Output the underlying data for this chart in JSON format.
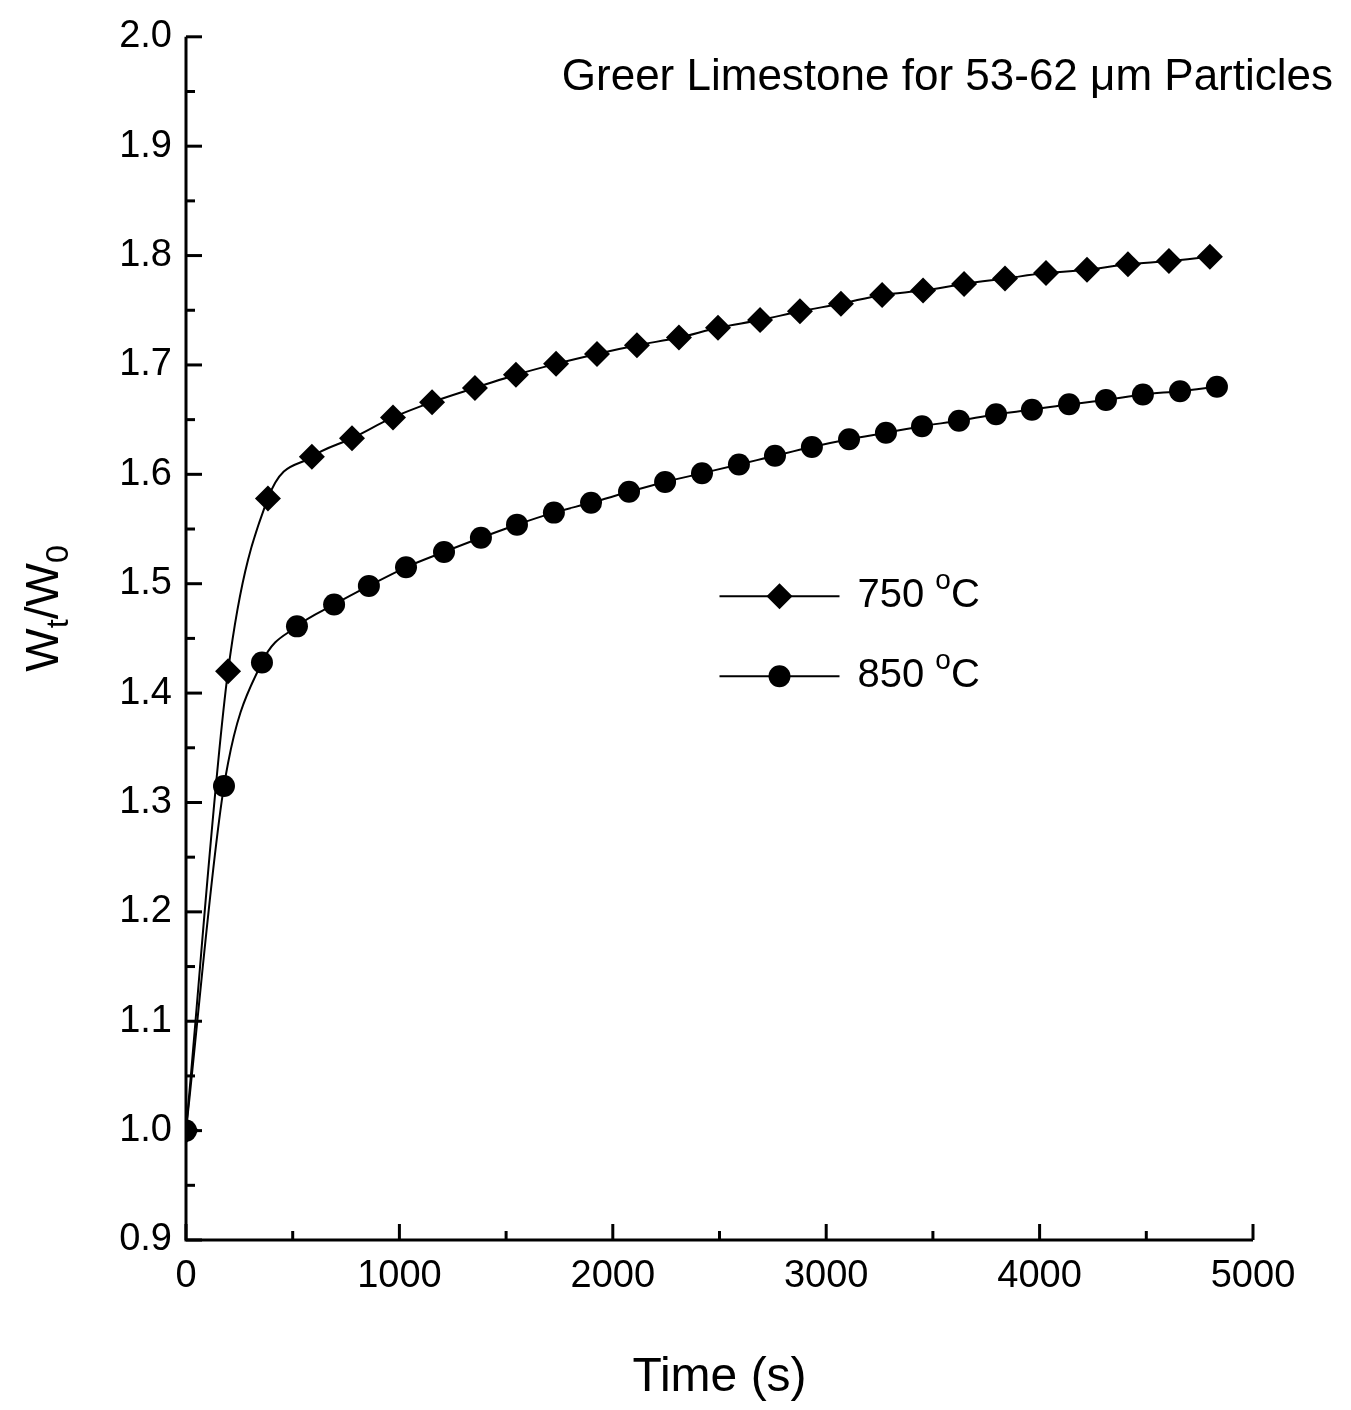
{
  "chart_data": {
    "type": "line",
    "title": "Greer Limestone for 53-62 μm Particles",
    "xlabel": "Time (s)",
    "ylabel": "W$_{t}$/W$_{0}$",
    "xlim": [
      0,
      5000
    ],
    "xticks": [
      0,
      {
        "value": 500,
        "label": null
      },
      1000,
      {
        "value": 1500,
        "label": null
      },
      2000,
      {
        "value": 2500,
        "label": null
      },
      3000,
      {
        "value": 3500,
        "label": null
      },
      4000,
      {
        "value": 4500,
        "label": null
      },
      5000
    ],
    "ylim": [
      0.9,
      2.0
    ],
    "yticks": [
      {
        "value": 0.9,
        "label": "0.9"
      },
      {
        "value": 0.95,
        "label": null
      },
      {
        "value": 1.0,
        "label": "1.0"
      },
      {
        "value": 1.05,
        "label": null
      },
      {
        "value": 1.1,
        "label": "1.1"
      },
      {
        "value": 1.15,
        "label": null
      },
      {
        "value": 1.2,
        "label": "1.2"
      },
      {
        "value": 1.25,
        "label": null
      },
      {
        "value": 1.3,
        "label": "1.3"
      },
      {
        "value": 1.35,
        "label": null
      },
      {
        "value": 1.4,
        "label": "1.4"
      },
      {
        "value": 1.45,
        "label": null
      },
      {
        "value": 1.5,
        "label": "1.5"
      },
      {
        "value": 1.55,
        "label": null
      },
      {
        "value": 1.6,
        "label": "1.6"
      },
      {
        "value": 1.65,
        "label": null
      },
      {
        "value": 1.7,
        "label": "1.7"
      },
      {
        "value": 1.75,
        "label": null
      },
      {
        "value": 1.8,
        "label": "1.8"
      },
      {
        "value": 1.85,
        "label": null
      },
      {
        "value": 1.9,
        "label": "1.9"
      },
      {
        "value": 1.95,
        "label": null
      },
      {
        "value": 2.0,
        "label": "2.0"
      }
    ],
    "legend": "center",
    "line_style": "solid",
    "series": [
      {
        "name": "750 $^{o}$C",
        "color": "#000000",
        "marker": "diamond",
        "x": [
          0,
          197,
          384,
          590,
          778,
          970,
          1153,
          1354,
          1546,
          1734,
          1926,
          2113,
          2310,
          2493,
          2690,
          2877,
          3069,
          3262,
          3454,
          3646,
          3838,
          4030,
          4222,
          4414,
          4606,
          4798
        ],
        "values": [
          1.0,
          1.42,
          1.578,
          1.616,
          1.633,
          1.652,
          1.666,
          1.679,
          1.691,
          1.701,
          1.71,
          1.718,
          1.725,
          1.734,
          1.741,
          1.749,
          1.756,
          1.764,
          1.768,
          1.774,
          1.779,
          1.784,
          1.787,
          1.792,
          1.795,
          1.799
        ]
      },
      {
        "name": "850 $^{o}$C",
        "color": "#000000",
        "marker": "circle",
        "x": [
          0,
          178,
          356,
          520,
          694,
          857,
          1031,
          1209,
          1382,
          1551,
          1724,
          1898,
          2076,
          2245,
          2418,
          2591,
          2760,
          2933,
          3107,
          3280,
          3449,
          3622,
          3796,
          3964,
          4138,
          4311,
          4484,
          4658,
          4831
        ],
        "values": [
          1.0,
          1.315,
          1.428,
          1.461,
          1.481,
          1.498,
          1.515,
          1.529,
          1.542,
          1.554,
          1.565,
          1.574,
          1.584,
          1.593,
          1.601,
          1.609,
          1.617,
          1.625,
          1.632,
          1.638,
          1.644,
          1.649,
          1.655,
          1.659,
          1.664,
          1.668,
          1.673,
          1.676,
          1.68
        ]
      }
    ]
  }
}
